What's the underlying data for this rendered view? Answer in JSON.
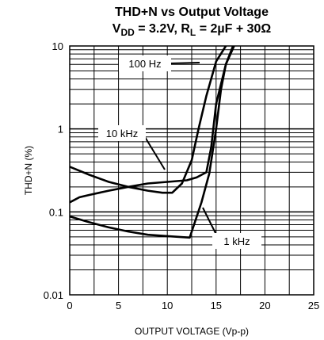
{
  "chart_data": {
    "type": "line",
    "title_line1": "THD+N vs Output Voltage",
    "title_line2_parts": {
      "v": "V",
      "v_sub": "DD",
      "v_value": " = 3.2V, R",
      "r_sub": "L",
      "r_value": " = 2µF + 30Ω"
    },
    "xlabel": "OUTPUT VOLTAGE (Vp-p)",
    "ylabel": "THD+N (%)",
    "xlim": [
      0,
      25
    ],
    "ylim": [
      0.01,
      10
    ],
    "y_scale": "log",
    "x_ticks": [
      "0",
      "5",
      "10",
      "15",
      "20",
      "25"
    ],
    "y_ticks": [
      "0.01",
      "0.1",
      "1",
      "10"
    ],
    "grid": true,
    "series": [
      {
        "name": "100 Hz",
        "x": [
          0,
          2,
          4,
          6,
          8,
          9.5,
          10.5,
          11.5,
          12.5,
          13.2,
          14,
          15,
          16,
          17
        ],
        "y": [
          0.35,
          0.28,
          0.23,
          0.2,
          0.18,
          0.17,
          0.17,
          0.22,
          0.42,
          1.0,
          2.5,
          6.5,
          10,
          13
        ]
      },
      {
        "name": "10 kHz",
        "x": [
          0,
          1,
          2,
          4,
          6,
          8,
          10,
          12,
          13,
          14,
          14.5,
          15,
          16,
          17
        ],
        "y": [
          0.13,
          0.15,
          0.16,
          0.18,
          0.2,
          0.22,
          0.23,
          0.24,
          0.26,
          0.3,
          0.6,
          2.0,
          6.0,
          12
        ]
      },
      {
        "name": "1 kHz",
        "x": [
          0,
          2,
          4,
          6,
          8,
          10,
          12.3,
          13.5,
          14.3,
          15,
          15.5,
          16,
          17
        ],
        "y": [
          0.088,
          0.075,
          0.065,
          0.058,
          0.053,
          0.051,
          0.049,
          0.13,
          0.29,
          1.0,
          3.0,
          6.0,
          11
        ]
      }
    ]
  }
}
